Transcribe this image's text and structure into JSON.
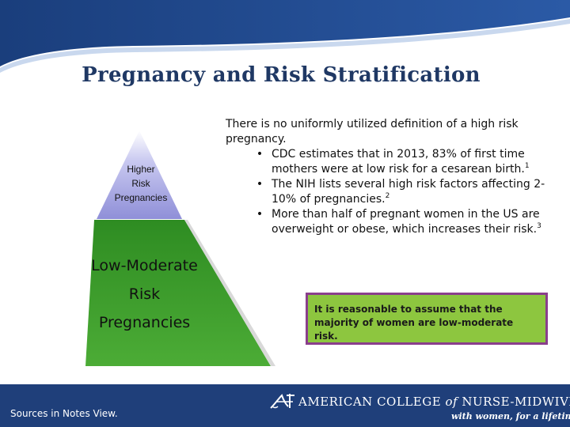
{
  "slide": {
    "title": "Pregnancy and Risk Stratification"
  },
  "pyramid": {
    "top_label_lines": [
      "Higher",
      "Risk",
      "Pregnancies"
    ],
    "bottom_label_lines": [
      "Low-Moderate",
      "Risk",
      "Pregnancies"
    ],
    "colors": {
      "top": "#8f8fd8",
      "bottom": "#3a9a2a"
    }
  },
  "body": {
    "intro": "There is no uniformly utilized definition of a high risk pregnancy.",
    "bullets": [
      {
        "text": "CDC estimates that in 2013, 83% of first time mothers were at low risk for a cesarean birth.",
        "ref": "1"
      },
      {
        "text": "The NIH lists several high risk factors affecting 2-10% of pregnancies.",
        "ref": "2"
      },
      {
        "text": "More than half of pregnant women in the US are overweight or obese, which increases their risk.",
        "ref": "3"
      }
    ],
    "bullet_glyph": "•"
  },
  "callout": {
    "text": "It is reasonable to assume that the majority of women are low-moderate risk.",
    "colors": {
      "fill": "#8dc63f",
      "border": "#8a3e8c"
    }
  },
  "footer": {
    "sources": "Sources in Notes View.",
    "org_name_pre": "AMERICAN COLLEGE",
    "org_name_of": "of",
    "org_name_post": "NURSE-MIDWIVES",
    "tagline": "with women, for a lifetime",
    "logo_icon": "acnm-logo-icon",
    "colors": {
      "band": "#1f3f7a"
    }
  }
}
